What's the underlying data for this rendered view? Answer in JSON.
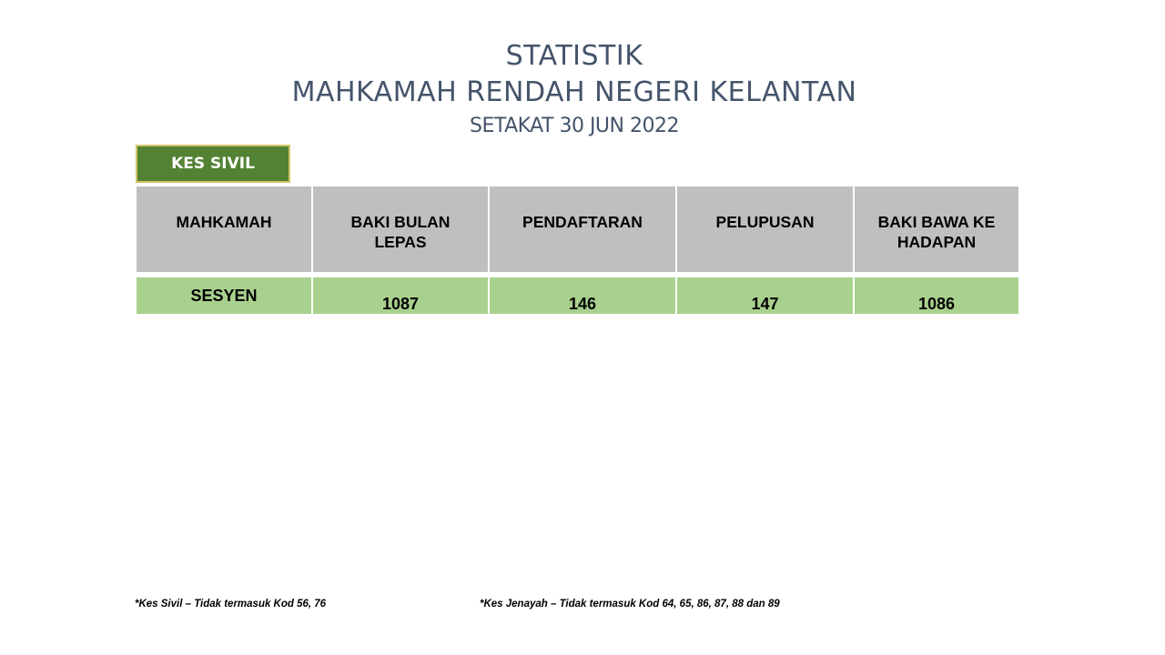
{
  "header": {
    "line1": "STATISTIK",
    "line2": "MAHKAMAH RENDAH NEGERI KELANTAN",
    "line3": "SETAKAT 30 JUN 2022"
  },
  "badge": {
    "label": "KES SIVIL",
    "color": "#548235"
  },
  "table": {
    "columns": [
      "MAHKAMAH",
      "BAKI BULAN LEPAS",
      "PENDAFTARAN",
      "PELUPUSAN",
      "BAKI BAWA KE HADAPAN"
    ],
    "rows": [
      {
        "court": "SESYEN",
        "baki_bulan_lepas": "1087",
        "pendaftaran": "146",
        "pelupusan": "147",
        "baki_bawa_ke_hadapan": "1086"
      }
    ],
    "header_color": "#bfbfbf",
    "row_color": "#a9d18e"
  },
  "footnotes": {
    "sivil": "*Kes Sivil – Tidak termasuk Kod 56, 76",
    "jenayah": "*Kes Jenayah – Tidak termasuk Kod 64, 65, 86, 87, 88 dan 89"
  }
}
